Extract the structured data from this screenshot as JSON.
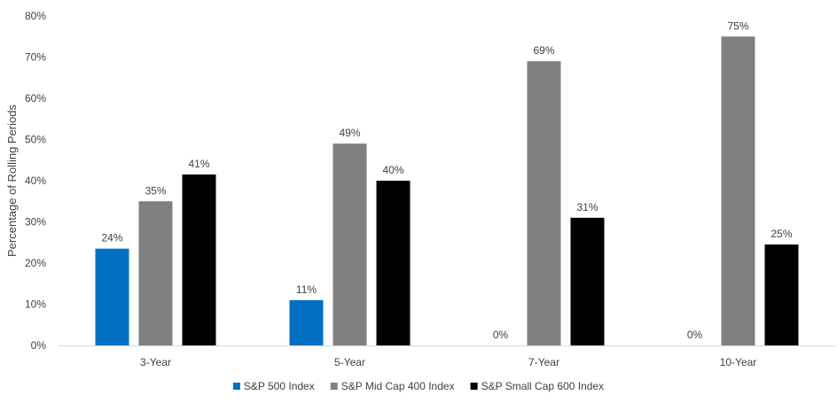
{
  "chart_data": {
    "type": "bar",
    "title": "",
    "xlabel": "",
    "ylabel": "Percentage of Rolling Periods",
    "categories": [
      "3-Year",
      "5-Year",
      "7-Year",
      "10-Year"
    ],
    "ylim": [
      0,
      80
    ],
    "yticks": [
      0,
      10,
      20,
      30,
      40,
      50,
      60,
      70,
      80
    ],
    "ytick_suffix": "%",
    "grid": false,
    "legend_position": "bottom",
    "series": [
      {
        "name": "S&P 500 Index",
        "color": "#0070c0",
        "values": [
          23.5,
          11,
          0,
          0
        ],
        "labels": [
          "24%",
          "11%",
          "0%",
          "0%"
        ]
      },
      {
        "name": "S&P Mid Cap 400 Index",
        "color": "#808080",
        "values": [
          35,
          49,
          69,
          75
        ],
        "labels": [
          "35%",
          "49%",
          "69%",
          "75%"
        ]
      },
      {
        "name": "S&P Small Cap 600 Index",
        "color": "#000000",
        "values": [
          41.5,
          40,
          31,
          24.5
        ],
        "labels": [
          "41%",
          "40%",
          "31%",
          "25%"
        ]
      }
    ]
  }
}
